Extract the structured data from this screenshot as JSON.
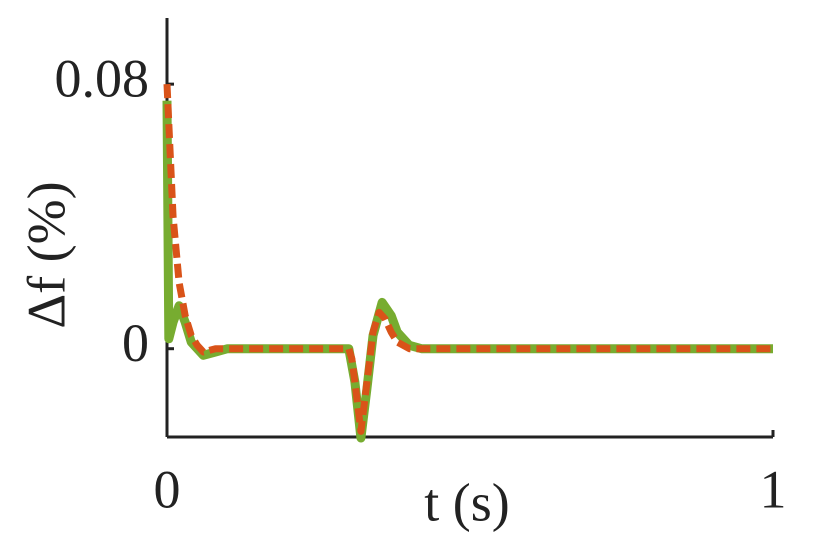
{
  "chart_data": {
    "type": "line",
    "x_label": "t (s)",
    "y_label": "Δf (%)",
    "xlim": [
      0,
      1
    ],
    "ylim": [
      -0.0267,
      0.1
    ],
    "xticks": [
      0,
      1
    ],
    "yticks": [
      0,
      0.08
    ],
    "series": [
      {
        "color": "#77ac30",
        "style": "solid",
        "x": [
          0,
          0.003,
          0.01,
          0.02,
          0.03,
          0.04,
          0.06,
          0.08,
          0.1,
          0.3,
          0.31,
          0.32,
          0.33,
          0.34,
          0.355,
          0.37,
          0.38,
          0.4,
          0.42,
          1
        ],
        "values": [
          0.075,
          0.003,
          0.008,
          0.013,
          0.008,
          0.002,
          -0.002,
          -0.001,
          0,
          0,
          -0.01,
          -0.027,
          -0.012,
          0.004,
          0.014,
          0.01,
          0.005,
          0.001,
          0,
          0
        ]
      },
      {
        "color": "#d95319",
        "style": "dashed",
        "x": [
          0,
          0.005,
          0.01,
          0.02,
          0.03,
          0.04,
          0.05,
          0.06,
          0.08,
          0.3,
          0.305,
          0.31,
          0.32,
          0.33,
          0.34,
          0.35,
          0.36,
          0.37,
          0.38,
          0.4,
          1
        ],
        "values": [
          0.08,
          0.06,
          0.04,
          0.02,
          0.01,
          0.004,
          0.001,
          -0.001,
          0,
          0,
          -0.003,
          -0.01,
          -0.025,
          -0.01,
          0.005,
          0.011,
          0.009,
          0.005,
          0.002,
          0,
          0
        ]
      }
    ]
  }
}
